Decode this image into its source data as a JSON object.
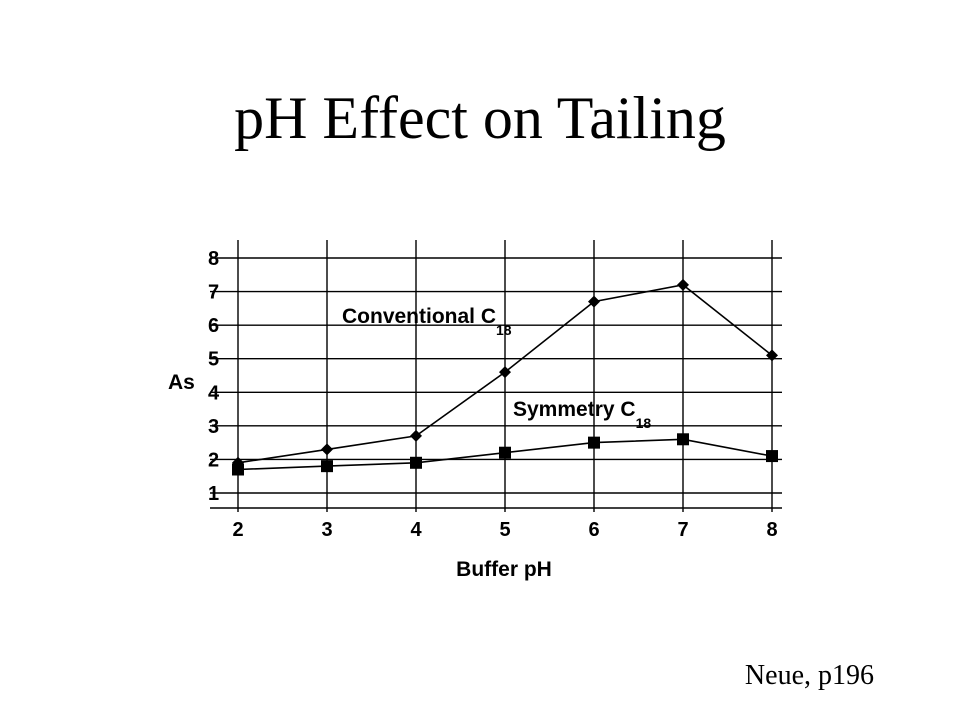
{
  "title": "pH Effect on Tailing",
  "citation": "Neue, p196",
  "chart_data": {
    "type": "line",
    "xlabel": "Buffer pH",
    "ylabel": "As",
    "xlim": [
      2,
      8
    ],
    "ylim": [
      0.8,
      8.5
    ],
    "x_ticks": [
      2,
      3,
      4,
      5,
      6,
      7,
      8
    ],
    "y_ticks": [
      1,
      2,
      3,
      4,
      5,
      6,
      7,
      8
    ],
    "grid": true,
    "series": [
      {
        "name": "Conventional C",
        "subscript": "18",
        "marker": "diamond",
        "x": [
          2,
          3,
          4,
          5,
          6,
          7,
          8
        ],
        "values": [
          1.9,
          2.3,
          2.7,
          4.6,
          6.7,
          7.2,
          5.1
        ]
      },
      {
        "name": "Symmetry C",
        "subscript": "18",
        "marker": "square",
        "x": [
          2,
          3,
          4,
          5,
          6,
          7,
          8
        ],
        "values": [
          1.7,
          1.8,
          1.9,
          2.2,
          2.5,
          2.6,
          2.1
        ]
      }
    ]
  }
}
